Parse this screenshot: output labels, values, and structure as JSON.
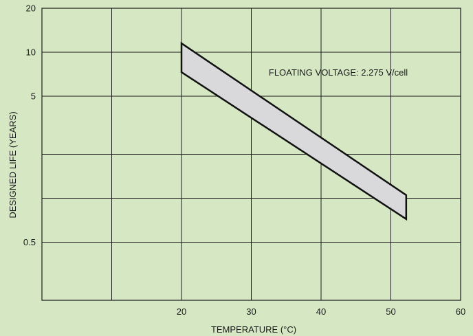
{
  "colors": {
    "background": "#d5e8c3",
    "grid": "#1a1a1a",
    "band_fill": "#d9d9dc",
    "band_stroke": "#111111"
  },
  "chart_data": {
    "type": "area",
    "xlabel": "TEMPERATURE (°C)",
    "ylabel": "DESIGNED LIFE (YEARS)",
    "xlim": [
      0,
      60
    ],
    "ylim": [
      0.2,
      20
    ],
    "y_scale": "log",
    "x_ticks": [
      20,
      30,
      40,
      50,
      60
    ],
    "x_tick_labels": [
      "20",
      "30",
      "40",
      "50",
      "60"
    ],
    "x_gridlines": [
      10,
      20,
      30,
      40,
      50
    ],
    "y_ticks": [
      0.5,
      5,
      10,
      20
    ],
    "y_tick_labels": [
      "0.5",
      "5",
      "10",
      "20"
    ],
    "y_gridlines": [
      0.5,
      1,
      2,
      5,
      10
    ],
    "grid": true,
    "series": [
      {
        "x": [
          20,
          52.2
        ],
        "values": [
          11.5,
          1.05
        ]
      },
      {
        "x": [
          20,
          52.2
        ],
        "values": [
          7.3,
          0.72
        ]
      }
    ],
    "annotations": [
      {
        "text": "FLOATING VOLTAGE: 2.275 V/cell",
        "x": 32.5,
        "y": 7.3
      }
    ]
  }
}
